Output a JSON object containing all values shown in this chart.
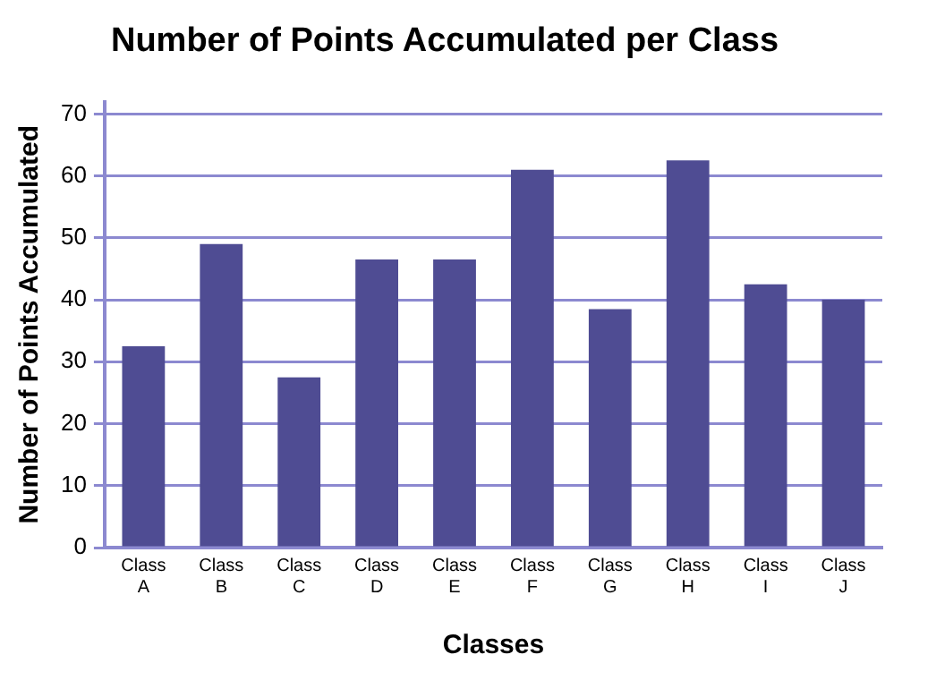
{
  "chart_data": {
    "type": "bar",
    "title": "Number of Points Accumulated per Class",
    "xlabel": "Classes",
    "ylabel": "Number of Points Accumulated",
    "categories": [
      "Class A",
      "Class B",
      "Class C",
      "Class D",
      "Class E",
      "Class F",
      "Class G",
      "Class H",
      "Class I",
      "Class J"
    ],
    "values": [
      32.5,
      49,
      27.5,
      46.5,
      46.5,
      61,
      38.5,
      62.5,
      42.5,
      40
    ],
    "color": "#4f4c93",
    "ylim": [
      0,
      72
    ],
    "yticks": [
      0,
      10,
      20,
      30,
      40,
      50,
      60,
      70
    ],
    "grid": "y",
    "legend": false
  }
}
